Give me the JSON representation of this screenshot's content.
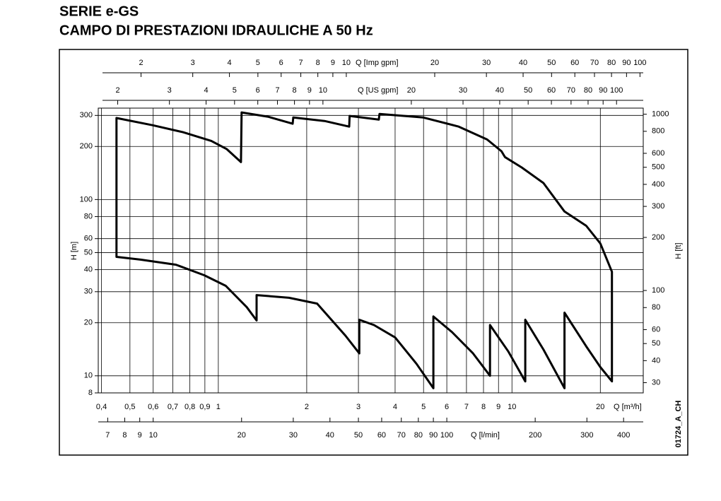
{
  "chart_data": {
    "type": "line",
    "title": "SERIE e-GS",
    "subtitle": "CAMPO DI PRESTAZIONI IDRAULICHE A 50 Hz",
    "xlabel": "Q [m³/h]",
    "ylabel": "H [m]",
    "y2label": "H [ft]",
    "annotation": "01724_A_CH",
    "xlog": true,
    "ylog": true,
    "grid": true,
    "xlim": [
      0.39,
      28
    ],
    "xticks": [
      {
        "value": 0.4,
        "label": "0,4"
      },
      {
        "value": 0.5,
        "label": "0,5"
      },
      {
        "value": 0.6,
        "label": "0,6"
      },
      {
        "value": 0.7,
        "label": "0,7"
      },
      {
        "value": 0.8,
        "label": "0,8"
      },
      {
        "value": 0.9,
        "label": "0,9"
      },
      1,
      2,
      3,
      4,
      5,
      6,
      7,
      8,
      9,
      10,
      20
    ],
    "ylim": [
      8,
      330
    ],
    "yticks": [
      8,
      10,
      20,
      30,
      40,
      50,
      60,
      80,
      100,
      200,
      300
    ],
    "y2lim": [
      26.25,
      1083
    ],
    "y2ticks": [
      30,
      40,
      50,
      60,
      80,
      100,
      200,
      300,
      400,
      500,
      600,
      800,
      1000
    ],
    "secondary_x_axes": [
      {
        "label": "Q [Imp gpm]",
        "position": "top",
        "lim": [
          1.43,
          102.6
        ],
        "ticks": [
          2,
          3,
          4,
          5,
          6,
          7,
          8,
          9,
          10,
          20,
          30,
          40,
          50,
          60,
          70,
          80,
          90,
          100
        ]
      },
      {
        "label": "Q [US gpm]",
        "position": "top",
        "lim": [
          1.717,
          123.3
        ],
        "ticks": [
          2,
          3,
          4,
          5,
          6,
          7,
          8,
          9,
          10,
          20,
          30,
          40,
          50,
          60,
          70,
          80,
          90,
          100
        ]
      },
      {
        "label": "Q [l/min]",
        "position": "bottom",
        "lim": [
          6.5,
          466.7
        ],
        "ticks": [
          7,
          8,
          9,
          10,
          20,
          30,
          40,
          50,
          60,
          70,
          80,
          90,
          100,
          200,
          300,
          400
        ]
      }
    ],
    "series": [
      {
        "color": "#000000",
        "x": [
          0.45,
          0.597,
          0.758,
          0.946,
          1.069,
          1.194,
          1.2,
          1.474,
          1.791,
          1.8,
          2.3,
          2.79,
          2.8,
          3.52,
          3.54,
          4.99,
          6.59,
          8.23,
          9.21,
          9.47,
          10.8,
          12.8,
          15.1,
          17.9,
          20.0,
          21.9,
          21.9,
          20.0,
          17.9,
          15.1,
          15.1,
          12.8,
          11.1,
          11.1,
          9.73,
          8.42,
          8.42,
          7.37,
          6.25,
          5.4,
          5.4,
          4.73,
          4.0,
          3.39,
          3.02,
          3.02,
          2.71,
          2.17,
          1.74,
          1.35,
          1.35,
          1.25,
          1.06,
          0.895,
          0.717,
          0.543,
          0.45
        ],
        "values": [
          290,
          264,
          241,
          215,
          193,
          163,
          312,
          295,
          269,
          292,
          279,
          259,
          298,
          284,
          306,
          292,
          259,
          219,
          188,
          174,
          152,
          124,
          85.5,
          71,
          56.3,
          38.9,
          9.3,
          11.2,
          14.7,
          22.8,
          8.5,
          14.1,
          20.8,
          9.3,
          13.7,
          19.4,
          10,
          13.4,
          17.7,
          21.7,
          8.5,
          11.7,
          16.5,
          19.4,
          20.8,
          13.4,
          16.9,
          25.7,
          27.7,
          28.7,
          20.6,
          24.5,
          32.4,
          37.2,
          42.7,
          45.6,
          47.3
        ]
      }
    ]
  }
}
